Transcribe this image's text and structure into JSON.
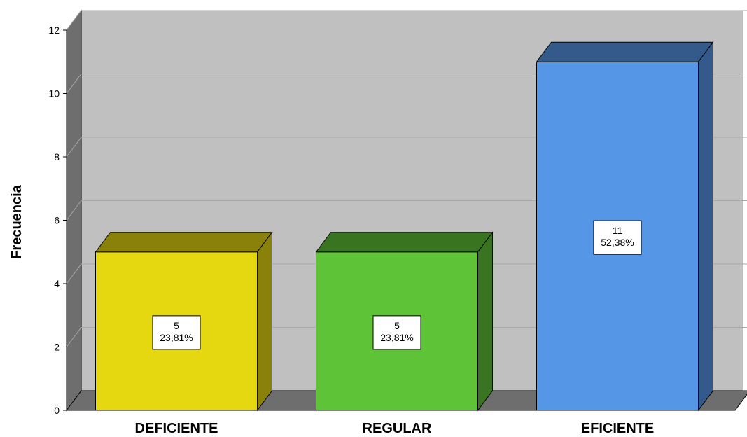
{
  "chart_data": {
    "type": "bar",
    "title": "",
    "xlabel": "",
    "ylabel": "Frecuencia",
    "categories": [
      "DEFICIENTE",
      "REGULAR",
      "EFICIENTE"
    ],
    "values": [
      5,
      5,
      11
    ],
    "percent_labels": [
      "23,81%",
      "23,81%",
      "52,38%"
    ],
    "colors": [
      "#e5d710",
      "#5fc337",
      "#5596e6"
    ],
    "ylim": [
      0,
      12
    ],
    "yticks": [
      0,
      2,
      4,
      6,
      8,
      10,
      12
    ],
    "grid": true,
    "legend": "none",
    "background": "#c0c0c0"
  }
}
